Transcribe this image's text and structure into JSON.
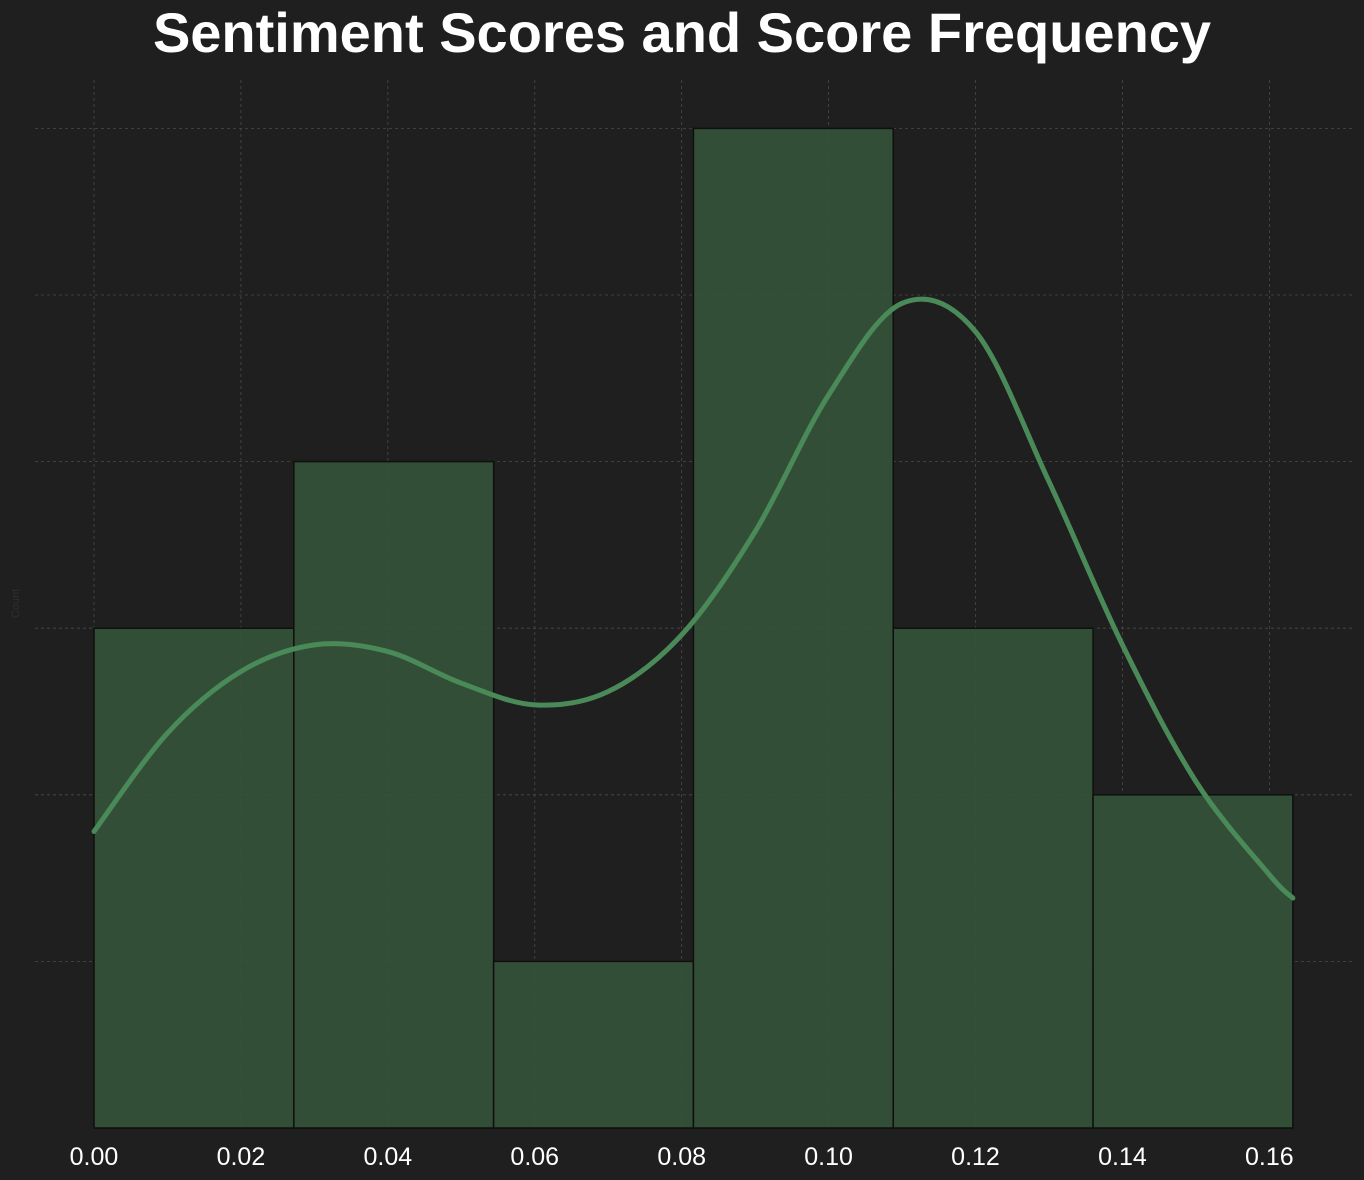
{
  "chart_data": {
    "type": "bar",
    "title": "Sentiment Scores and Score Frequency",
    "xlabel": "",
    "ylabel": "Count",
    "bin_edges": [
      0.0,
      0.0272,
      0.0544,
      0.0816,
      0.1088,
      0.136,
      0.1632
    ],
    "counts": [
      3,
      4,
      1,
      6,
      3,
      2
    ],
    "kde": {
      "x": [
        0.0,
        0.01,
        0.02,
        0.03,
        0.04,
        0.05,
        0.06,
        0.07,
        0.08,
        0.09,
        0.1,
        0.11,
        0.12,
        0.13,
        0.14,
        0.15,
        0.16,
        0.1632
      ],
      "y": [
        1.78,
        2.37,
        2.74,
        2.9,
        2.86,
        2.67,
        2.54,
        2.62,
        2.96,
        3.58,
        4.4,
        4.95,
        4.78,
        3.88,
        2.9,
        2.08,
        1.52,
        1.38
      ]
    },
    "xticks": [
      "0.00",
      "0.02",
      "0.04",
      "0.06",
      "0.08",
      "0.10",
      "0.12",
      "0.14",
      "0.16"
    ],
    "xlim": [
      -0.008,
      0.167
    ],
    "ylim": [
      0,
      6.3
    ],
    "yticks_hidden": true,
    "grid": true,
    "colors": {
      "background": "#1f1f1f",
      "bar_fill": "#355239",
      "bar_edge": "#0f0f0f",
      "kde_line": "#4a8a58",
      "grid": "#4a4a4a",
      "text": "#ffffff"
    }
  }
}
